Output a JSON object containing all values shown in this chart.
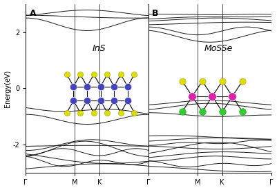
{
  "title_A": "InS",
  "title_B": "MoSSe",
  "ylabel": "Energy(eV)",
  "xticks_labels": [
    "Γ",
    "M",
    "K",
    "Γ"
  ],
  "ylim": [
    -3.0,
    3.0
  ],
  "yticks": [
    -2,
    0,
    2
  ],
  "bg_color": "#ffffff",
  "line_color": "#1a1a1a",
  "line_width": 0.7,
  "label_A": "A",
  "label_B": "B",
  "InS_color_In": "#4444bb",
  "InS_color_S": "#dddd00",
  "MoSSe_color_Mo": "#dd22aa",
  "MoSSe_color_S": "#dddd00",
  "MoSSe_color_Se": "#33cc33",
  "k_pts": [
    0,
    1.0,
    1.5,
    2.5
  ],
  "N_kpts": 200
}
